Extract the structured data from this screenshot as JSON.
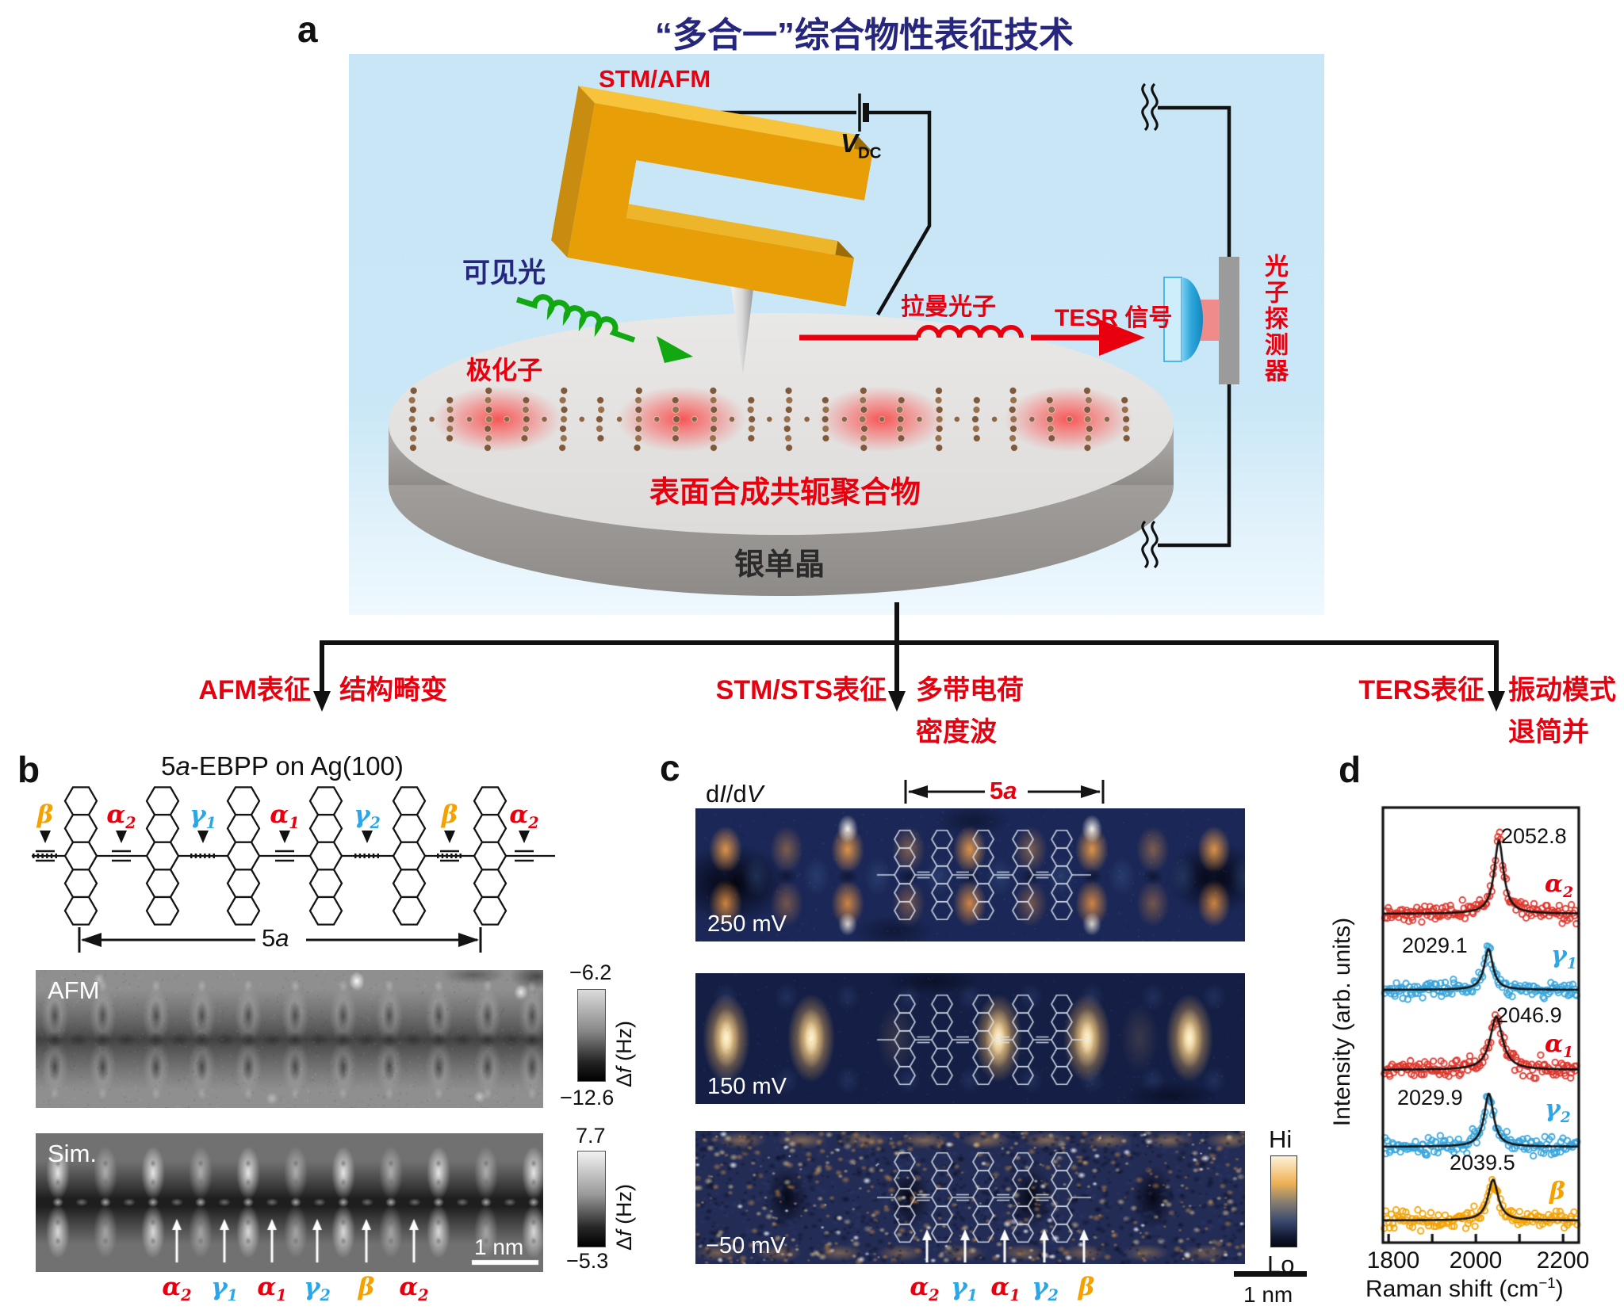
{
  "colors": {
    "title_blue": "#26267e",
    "accent_red": "#e8000f",
    "alpha_red": "#e0352b",
    "gamma_blue": "#2ba7e8",
    "beta_orange": "#f5a200",
    "fork_gold": "#e89e06",
    "map_bg_navy": "#1b2756",
    "map_hot_orange": "#f0a040",
    "box_blue": "#c8e6f6"
  },
  "panel_a": {
    "label": "a",
    "title": "“多合一”综合物性表征技术",
    "stm_afm": "STM/AFM",
    "vdc_base": "V",
    "vdc_sub": "DC",
    "visible_light": "可见光",
    "polaron": "极化子",
    "raman_photon": "拉曼光子",
    "tesr_signal": "TESR 信号",
    "photon_detector": "光子探测器",
    "polymer_label": "表面合成共轭聚合物",
    "crystal_label": "银单晶"
  },
  "branches": {
    "items": [
      {
        "method": "AFM表征",
        "result1": "结构畸变",
        "result2": ""
      },
      {
        "method": "STM/STS表征",
        "result1": "多带电荷",
        "result2": "密度波"
      },
      {
        "method": "TERS表征",
        "result1": "振动模式",
        "result2": "退简并"
      }
    ]
  },
  "panel_b": {
    "label": "b",
    "title_pre": "5",
    "title_it": "a",
    "title_post": "-EBPP on Ag(100)",
    "bond_labels": [
      {
        "base": "β",
        "sub": "",
        "color": "#f5a200"
      },
      {
        "base": "α",
        "sub": "2",
        "color": "#e8000f"
      },
      {
        "base": "γ",
        "sub": "1",
        "color": "#2ba7e8"
      },
      {
        "base": "α",
        "sub": "1",
        "color": "#e8000f"
      },
      {
        "base": "γ",
        "sub": "2",
        "color": "#2ba7e8"
      },
      {
        "base": "β",
        "sub": "",
        "color": "#f5a200"
      },
      {
        "base": "α",
        "sub": "2",
        "color": "#e8000f"
      }
    ],
    "dim_pre": "5",
    "dim_it": "a",
    "afm_label": "AFM",
    "afm_scale_top": "−6.2",
    "afm_scale_bottom": "−12.6",
    "scale_unit_pre": "Δ",
    "scale_unit_it": "f",
    "scale_unit_post": " (Hz)",
    "sim_label": "Sim.",
    "sim_scale_top": "7.7",
    "sim_scale_bottom": "−5.3",
    "scalebar": "1 nm",
    "sim_labels": [
      {
        "base": "α",
        "sub": "2",
        "color": "#e8000f"
      },
      {
        "base": "γ",
        "sub": "1",
        "color": "#2ba7e8"
      },
      {
        "base": "α",
        "sub": "1",
        "color": "#e8000f"
      },
      {
        "base": "γ",
        "sub": "2",
        "color": "#2ba7e8"
      },
      {
        "base": "β",
        "sub": "",
        "color": "#f5a200"
      },
      {
        "base": "α",
        "sub": "2",
        "color": "#e8000f"
      }
    ]
  },
  "panel_c": {
    "label": "c",
    "didv_d1": "d",
    "didv_i": "I",
    "didv_d2": "/d",
    "didv_v": "V",
    "dim_pre": "5",
    "dim_it": "a",
    "maps": [
      {
        "bias": "250 mV"
      },
      {
        "bias": "150 mV"
      },
      {
        "bias": "−50 mV"
      }
    ],
    "colorbar_hi": "Hi",
    "colorbar_lo": "Lo",
    "scalebar": "1 nm",
    "arrow_labels": [
      {
        "base": "α",
        "sub": "2",
        "color": "#e8000f"
      },
      {
        "base": "γ",
        "sub": "1",
        "color": "#2ba7e8"
      },
      {
        "base": "α",
        "sub": "1",
        "color": "#e8000f"
      },
      {
        "base": "γ",
        "sub": "2",
        "color": "#2ba7e8"
      },
      {
        "base": "β",
        "sub": "",
        "color": "#f5a200"
      }
    ]
  },
  "panel_d": {
    "label": "d",
    "ylabel": "Intensity (arb. units)",
    "xlabel_main": "Raman shift (cm",
    "xlabel_sup": "−1",
    "xlabel_close": ")",
    "xticks": [
      "1800",
      "2000",
      "2200"
    ]
  },
  "chart_data": {
    "type": "scatter",
    "title": "TERS spectra of C≡C stretching modes (stacked, offset)",
    "xlabel": "Raman shift (cm−1)",
    "ylabel": "Intensity (arb. units)",
    "xlim": [
      1787,
      2236
    ],
    "xticks": [
      1800,
      1900,
      2000,
      2100,
      2200
    ],
    "xtick_labels": [
      "1800",
      "",
      "2000",
      "",
      "2200"
    ],
    "grid": false,
    "legend_position": "right of each curve",
    "series": [
      {
        "name": "alpha2",
        "label_base": "α",
        "label_sub": "2",
        "color": "#e0352b",
        "annotation": "2052.8",
        "peak_center": 2052.8,
        "fwhm": 26,
        "amplitude": 1.0,
        "row": 0
      },
      {
        "name": "gamma1",
        "label_base": "γ",
        "label_sub": "1",
        "color": "#39a5dc",
        "annotation": "2029.1",
        "peak_center": 2029.1,
        "fwhm": 24,
        "amplitude": 0.56,
        "row": 1
      },
      {
        "name": "alpha1",
        "label_base": "α",
        "label_sub": "1",
        "color": "#e0352b",
        "annotation": "2046.9",
        "peak_center": 2046.9,
        "fwhm": 34,
        "amplitude": 0.73,
        "row": 2
      },
      {
        "name": "gamma2",
        "label_base": "γ",
        "label_sub": "2",
        "color": "#39a5dc",
        "annotation": "2029.9",
        "peak_center": 2029.9,
        "fwhm": 26,
        "amplitude": 0.73,
        "row": 3
      },
      {
        "name": "beta",
        "label_base": "β",
        "label_sub": "",
        "color": "#f5a200",
        "annotation": "2039.5",
        "peak_center": 2039.5,
        "fwhm": 28,
        "amplitude": 0.56,
        "row": 4
      }
    ]
  }
}
